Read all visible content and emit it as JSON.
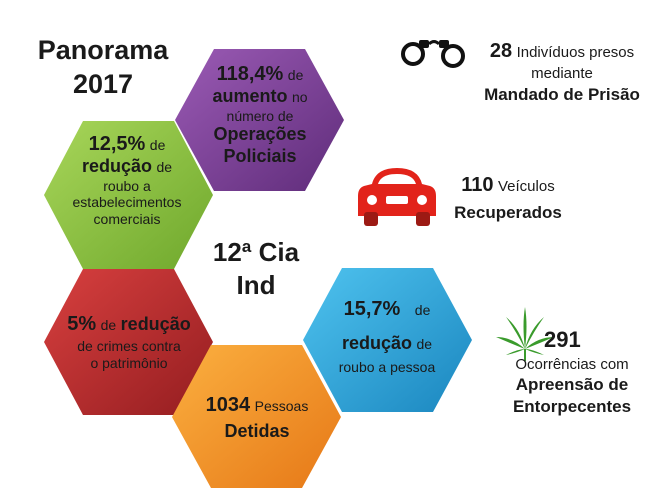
{
  "title": {
    "line1": "Panorama",
    "line2": "2017"
  },
  "center": {
    "line1": "12ª Cia",
    "line2": "Ind"
  },
  "hex_purple": {
    "value": "118,4%",
    "word1": "de",
    "bold1": "aumento",
    "word2": "no",
    "line3": "número de",
    "bold2": "Operações",
    "bold3": "Policiais",
    "color": "#7e3f98"
  },
  "hex_green": {
    "value": "12,5%",
    "word1": "de",
    "bold1": "redução",
    "word2": "de",
    "line3": "roubo a",
    "line4": "estabelecimentos",
    "line5": "comerciais",
    "color": "#8dc63f"
  },
  "hex_red": {
    "value": "5%",
    "word1": "de",
    "bold1": "redução",
    "line2": "de crimes contra",
    "line3": "o patrimônio",
    "color": "#c0272d"
  },
  "hex_orange": {
    "value": "1034",
    "word1": "Pessoas",
    "bold1": "Detidas",
    "color": "#f7941d"
  },
  "hex_blue": {
    "value": "15,7%",
    "word1": "de",
    "bold1": "redução",
    "word2": "de",
    "line3": "roubo a pessoa",
    "color": "#29abe2"
  },
  "stat_arrests": {
    "value": "28",
    "text1": "Indivíduos presos",
    "text2": "mediante",
    "bold": "Mandado de Prisão",
    "icon": "handcuffs-icon"
  },
  "stat_vehicles": {
    "value": "110",
    "text1": "Veículos",
    "bold": "Recuperados",
    "icon": "car-icon",
    "icon_color": "#e2231a"
  },
  "stat_drugs": {
    "value": "291",
    "text1": "Ocorrências com",
    "bold1": "Apreensão de",
    "bold2": "Entorpecentes",
    "icon": "cannabis-leaf-icon",
    "icon_color": "#3a9b2c"
  }
}
